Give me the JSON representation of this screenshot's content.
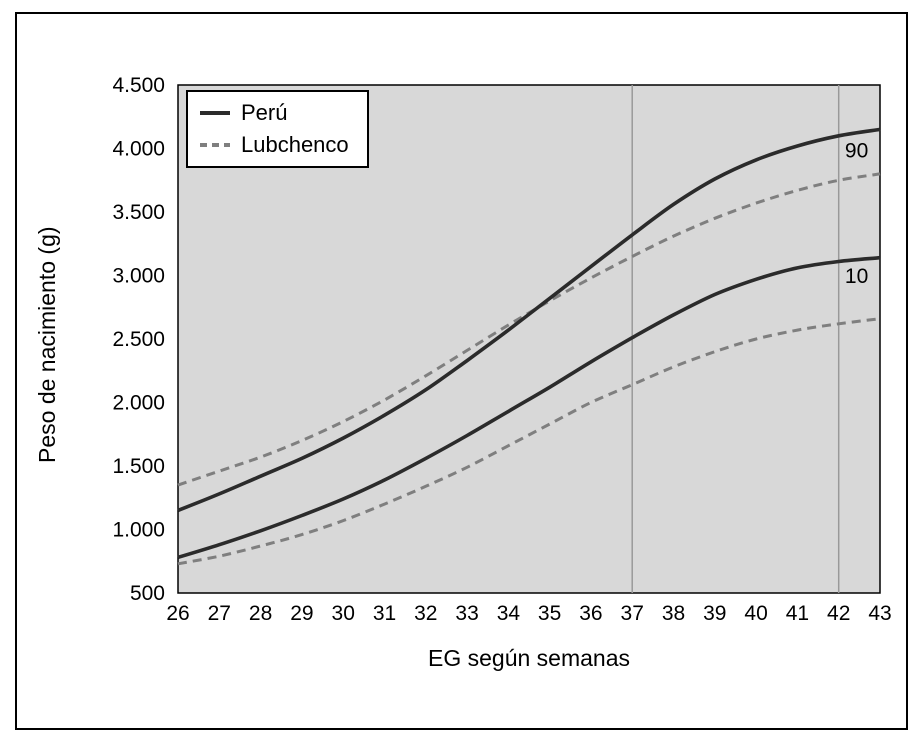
{
  "chart_data": {
    "type": "line",
    "title": "",
    "xlabel": "EG según semanas",
    "ylabel": "Peso de nacimiento (g)",
    "xlim": [
      26,
      43
    ],
    "ylim": [
      500,
      4500
    ],
    "x": [
      26,
      27,
      28,
      29,
      30,
      31,
      32,
      33,
      34,
      35,
      36,
      37,
      38,
      39,
      40,
      41,
      42,
      43
    ],
    "y_ticks": [
      {
        "value": 500,
        "label": "500"
      },
      {
        "value": 1000,
        "label": "1.000"
      },
      {
        "value": 1500,
        "label": "1.500"
      },
      {
        "value": 2000,
        "label": "2.000"
      },
      {
        "value": 2500,
        "label": "2.500"
      },
      {
        "value": 3000,
        "label": "3.000"
      },
      {
        "value": 3500,
        "label": "3.500"
      },
      {
        "value": 4000,
        "label": "4.000"
      },
      {
        "value": 4500,
        "label": "4.500"
      }
    ],
    "grid": {
      "vertical_lines_x": [
        37,
        42
      ]
    },
    "legend": {
      "position": "top-left",
      "entries": [
        {
          "label": "Perú",
          "style": "solid",
          "color": "#2b2b2b"
        },
        {
          "label": "Lubchenco",
          "style": "dashed",
          "color": "#7f7f7f"
        }
      ]
    },
    "annotations": [
      {
        "text": "90",
        "x": 42.15,
        "y": 3930
      },
      {
        "text": "10",
        "x": 42.15,
        "y": 2940
      }
    ],
    "series": [
      {
        "name": "Lubchenco",
        "percentile": "90",
        "style": "dashed",
        "color": "#7f7f7f",
        "values": [
          1350,
          1460,
          1570,
          1700,
          1850,
          2020,
          2210,
          2410,
          2610,
          2800,
          2980,
          3150,
          3310,
          3450,
          3570,
          3670,
          3750,
          3800
        ]
      },
      {
        "name": "Lubchenco",
        "percentile": "10",
        "style": "dashed",
        "color": "#7f7f7f",
        "values": [
          730,
          790,
          870,
          960,
          1070,
          1200,
          1340,
          1490,
          1660,
          1830,
          2000,
          2140,
          2280,
          2400,
          2500,
          2570,
          2620,
          2660
        ]
      },
      {
        "name": "Peru",
        "percentile": "90",
        "style": "solid",
        "color": "#2b2b2b",
        "values": [
          1150,
          1280,
          1420,
          1560,
          1720,
          1900,
          2100,
          2330,
          2570,
          2820,
          3070,
          3320,
          3560,
          3760,
          3910,
          4020,
          4100,
          4150
        ]
      },
      {
        "name": "Peru",
        "percentile": "10",
        "style": "solid",
        "color": "#2b2b2b",
        "values": [
          780,
          880,
          990,
          1110,
          1240,
          1390,
          1560,
          1740,
          1930,
          2120,
          2320,
          2510,
          2690,
          2850,
          2970,
          3060,
          3110,
          3140
        ]
      }
    ],
    "colors": {
      "plot_bg": "#d8d8d8",
      "grid": "#999999",
      "axis": "#000000",
      "text": "#000000"
    }
  }
}
